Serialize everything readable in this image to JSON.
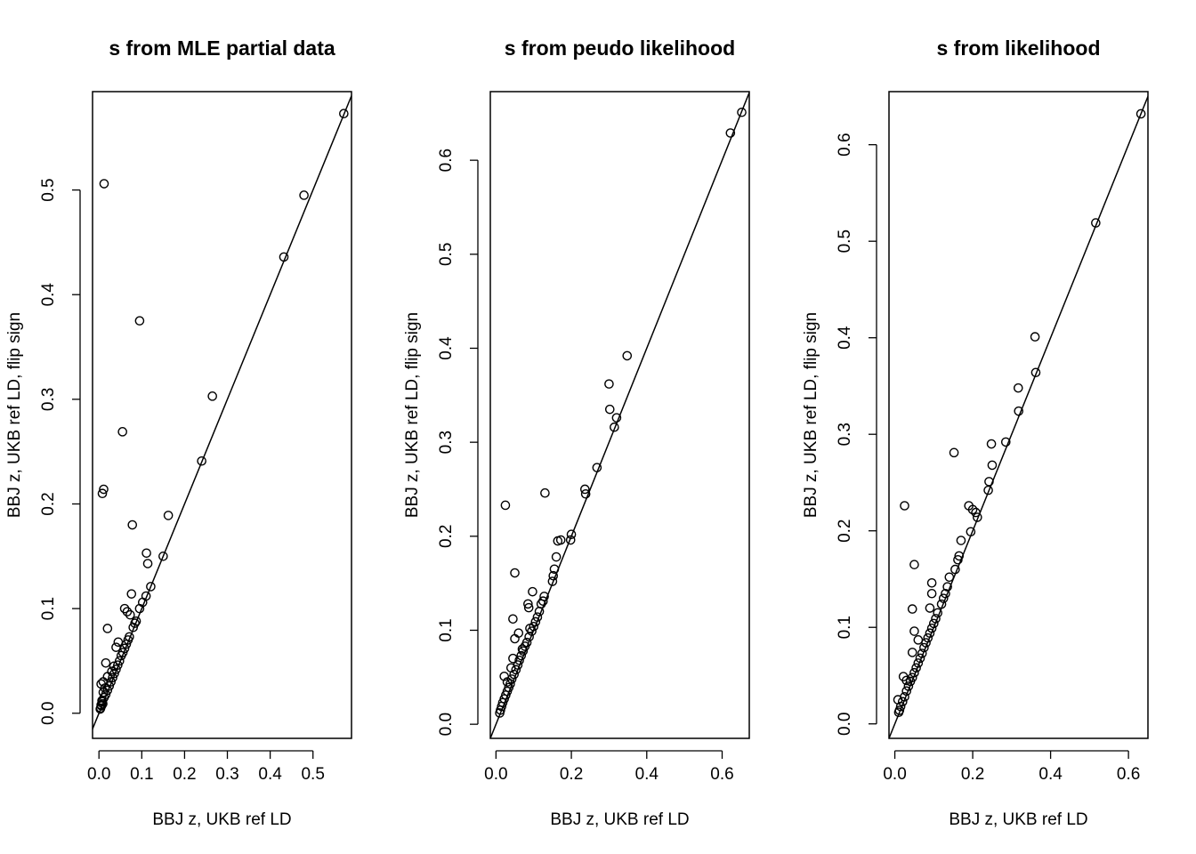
{
  "chart_data": [
    {
      "type": "scatter",
      "title": "s from MLE partial data",
      "xlabel": "BBJ z, UKB ref LD",
      "ylabel": "BBJ z, UKB ref LD, flip sign",
      "xlim": [
        -0.015,
        0.59
      ],
      "ylim": [
        -0.024,
        0.594
      ],
      "xticks": [
        "0.0",
        "0.1",
        "0.2",
        "0.3",
        "0.4",
        "0.5"
      ],
      "yticks": [
        "0.0",
        "0.1",
        "0.2",
        "0.3",
        "0.4",
        "0.5"
      ],
      "xtick_values": [
        0,
        0.1,
        0.2,
        0.3,
        0.4,
        0.5
      ],
      "ytick_values": [
        0,
        0.1,
        0.2,
        0.3,
        0.4,
        0.5
      ],
      "reference_line": "y = x",
      "points": [
        [
          0.012,
          0.506
        ],
        [
          0.095,
          0.375
        ],
        [
          0.055,
          0.269
        ],
        [
          0.265,
          0.303
        ],
        [
          0.24,
          0.241
        ],
        [
          0.011,
          0.214
        ],
        [
          0.008,
          0.21
        ],
        [
          0.078,
          0.18
        ],
        [
          0.162,
          0.189
        ],
        [
          0.15,
          0.15
        ],
        [
          0.111,
          0.153
        ],
        [
          0.114,
          0.143
        ],
        [
          0.121,
          0.121
        ],
        [
          0.432,
          0.436
        ],
        [
          0.479,
          0.495
        ],
        [
          0.572,
          0.573
        ],
        [
          0.076,
          0.114
        ],
        [
          0.02,
          0.081
        ],
        [
          0.06,
          0.1
        ],
        [
          0.066,
          0.097
        ],
        [
          0.073,
          0.094
        ],
        [
          0.087,
          0.088
        ],
        [
          0.095,
          0.1
        ],
        [
          0.102,
          0.106
        ],
        [
          0.11,
          0.112
        ],
        [
          0.04,
          0.063
        ],
        [
          0.045,
          0.068
        ],
        [
          0.048,
          0.05
        ],
        [
          0.052,
          0.055
        ],
        [
          0.056,
          0.058
        ],
        [
          0.06,
          0.062
        ],
        [
          0.064,
          0.066
        ],
        [
          0.068,
          0.07
        ],
        [
          0.071,
          0.073
        ],
        [
          0.08,
          0.082
        ],
        [
          0.084,
          0.086
        ],
        [
          0.016,
          0.048
        ],
        [
          0.005,
          0.028
        ],
        [
          0.01,
          0.03
        ],
        [
          0.02,
          0.035
        ],
        [
          0.03,
          0.04
        ],
        [
          0.035,
          0.045
        ],
        [
          0.028,
          0.03
        ],
        [
          0.032,
          0.034
        ],
        [
          0.036,
          0.038
        ],
        [
          0.04,
          0.042
        ],
        [
          0.044,
          0.046
        ],
        [
          0.024,
          0.026
        ],
        [
          0.02,
          0.022
        ],
        [
          0.016,
          0.018
        ],
        [
          0.012,
          0.015
        ],
        [
          0.008,
          0.011
        ],
        [
          0.005,
          0.008
        ],
        [
          0.004,
          0.005
        ],
        [
          0.006,
          0.007
        ],
        [
          0.003,
          0.004
        ],
        [
          0.007,
          0.012
        ],
        [
          0.01,
          0.02
        ],
        [
          0.014,
          0.024
        ],
        [
          0.009,
          0.009
        ]
      ]
    },
    {
      "type": "scatter",
      "title": "s from peudo likelihood",
      "xlabel": "BBJ z, UKB ref LD",
      "ylabel": "BBJ z, UKB ref LD, flip sign",
      "xlim": [
        -0.015,
        0.672
      ],
      "ylim": [
        -0.015,
        0.673
      ],
      "xticks": [
        "0.0",
        "0.2",
        "0.4",
        "0.6"
      ],
      "yticks": [
        "0.0",
        "0.1",
        "0.2",
        "0.3",
        "0.4",
        "0.5",
        "0.6"
      ],
      "xtick_values": [
        0,
        0.2,
        0.4,
        0.6
      ],
      "ytick_values": [
        0,
        0.1,
        0.2,
        0.3,
        0.4,
        0.5,
        0.6
      ],
      "reference_line": "y = x",
      "points": [
        [
          0.652,
          0.651
        ],
        [
          0.622,
          0.629
        ],
        [
          0.348,
          0.392
        ],
        [
          0.3,
          0.362
        ],
        [
          0.302,
          0.335
        ],
        [
          0.32,
          0.326
        ],
        [
          0.314,
          0.316
        ],
        [
          0.268,
          0.273
        ],
        [
          0.236,
          0.25
        ],
        [
          0.238,
          0.245
        ],
        [
          0.025,
          0.233
        ],
        [
          0.13,
          0.246
        ],
        [
          0.2,
          0.202
        ],
        [
          0.198,
          0.196
        ],
        [
          0.172,
          0.196
        ],
        [
          0.164,
          0.195
        ],
        [
          0.16,
          0.178
        ],
        [
          0.155,
          0.165
        ],
        [
          0.152,
          0.158
        ],
        [
          0.15,
          0.152
        ],
        [
          0.05,
          0.161
        ],
        [
          0.097,
          0.141
        ],
        [
          0.045,
          0.112
        ],
        [
          0.085,
          0.128
        ],
        [
          0.087,
          0.124
        ],
        [
          0.128,
          0.136
        ],
        [
          0.125,
          0.131
        ],
        [
          0.12,
          0.128
        ],
        [
          0.115,
          0.12
        ],
        [
          0.11,
          0.114
        ],
        [
          0.105,
          0.109
        ],
        [
          0.1,
          0.104
        ],
        [
          0.095,
          0.099
        ],
        [
          0.088,
          0.093
        ],
        [
          0.082,
          0.087
        ],
        [
          0.05,
          0.091
        ],
        [
          0.06,
          0.097
        ],
        [
          0.077,
          0.083
        ],
        [
          0.072,
          0.078
        ],
        [
          0.067,
          0.073
        ],
        [
          0.062,
          0.068
        ],
        [
          0.058,
          0.063
        ],
        [
          0.053,
          0.058
        ],
        [
          0.048,
          0.053
        ],
        [
          0.045,
          0.07
        ],
        [
          0.042,
          0.048
        ],
        [
          0.038,
          0.043
        ],
        [
          0.034,
          0.039
        ],
        [
          0.03,
          0.035
        ],
        [
          0.022,
          0.051
        ],
        [
          0.026,
          0.031
        ],
        [
          0.022,
          0.027
        ],
        [
          0.018,
          0.023
        ],
        [
          0.015,
          0.019
        ],
        [
          0.012,
          0.015
        ],
        [
          0.01,
          0.012
        ],
        [
          0.03,
          0.045
        ],
        [
          0.04,
          0.06
        ],
        [
          0.07,
          0.08
        ],
        [
          0.09,
          0.102
        ]
      ]
    },
    {
      "type": "scatter",
      "title": "s from likelihood",
      "xlabel": "BBJ z, UKB ref LD",
      "ylabel": "BBJ z, UKB ref LD, flip sign",
      "xlim": [
        -0.015,
        0.65
      ],
      "ylim": [
        -0.015,
        0.655
      ],
      "xticks": [
        "0.0",
        "0.2",
        "0.4",
        "0.6"
      ],
      "yticks": [
        "0.0",
        "0.1",
        "0.2",
        "0.3",
        "0.4",
        "0.5",
        "0.6"
      ],
      "xtick_values": [
        0,
        0.2,
        0.4,
        0.6
      ],
      "ytick_values": [
        0,
        0.1,
        0.2,
        0.3,
        0.4,
        0.5,
        0.6
      ],
      "reference_line": "y = x",
      "points": [
        [
          0.632,
          0.632
        ],
        [
          0.516,
          0.519
        ],
        [
          0.36,
          0.401
        ],
        [
          0.362,
          0.364
        ],
        [
          0.317,
          0.348
        ],
        [
          0.318,
          0.324
        ],
        [
          0.285,
          0.292
        ],
        [
          0.248,
          0.29
        ],
        [
          0.152,
          0.281
        ],
        [
          0.25,
          0.268
        ],
        [
          0.242,
          0.251
        ],
        [
          0.24,
          0.242
        ],
        [
          0.025,
          0.226
        ],
        [
          0.19,
          0.226
        ],
        [
          0.2,
          0.222
        ],
        [
          0.208,
          0.219
        ],
        [
          0.212,
          0.214
        ],
        [
          0.195,
          0.199
        ],
        [
          0.17,
          0.19
        ],
        [
          0.165,
          0.174
        ],
        [
          0.162,
          0.17
        ],
        [
          0.155,
          0.16
        ],
        [
          0.05,
          0.165
        ],
        [
          0.14,
          0.152
        ],
        [
          0.135,
          0.142
        ],
        [
          0.13,
          0.135
        ],
        [
          0.125,
          0.13
        ],
        [
          0.12,
          0.124
        ],
        [
          0.045,
          0.119
        ],
        [
          0.095,
          0.146
        ],
        [
          0.095,
          0.135
        ],
        [
          0.09,
          0.12
        ],
        [
          0.11,
          0.115
        ],
        [
          0.105,
          0.109
        ],
        [
          0.1,
          0.104
        ],
        [
          0.095,
          0.099
        ],
        [
          0.09,
          0.094
        ],
        [
          0.085,
          0.089
        ],
        [
          0.05,
          0.096
        ],
        [
          0.06,
          0.087
        ],
        [
          0.08,
          0.084
        ],
        [
          0.075,
          0.079
        ],
        [
          0.07,
          0.073
        ],
        [
          0.065,
          0.068
        ],
        [
          0.06,
          0.063
        ],
        [
          0.055,
          0.058
        ],
        [
          0.05,
          0.053
        ],
        [
          0.045,
          0.074
        ],
        [
          0.045,
          0.048
        ],
        [
          0.04,
          0.044
        ],
        [
          0.035,
          0.039
        ],
        [
          0.03,
          0.034
        ],
        [
          0.022,
          0.049
        ],
        [
          0.025,
          0.028
        ],
        [
          0.02,
          0.023
        ],
        [
          0.015,
          0.018
        ],
        [
          0.012,
          0.014
        ],
        [
          0.01,
          0.012
        ],
        [
          0.008,
          0.025
        ],
        [
          0.03,
          0.045
        ]
      ]
    }
  ]
}
